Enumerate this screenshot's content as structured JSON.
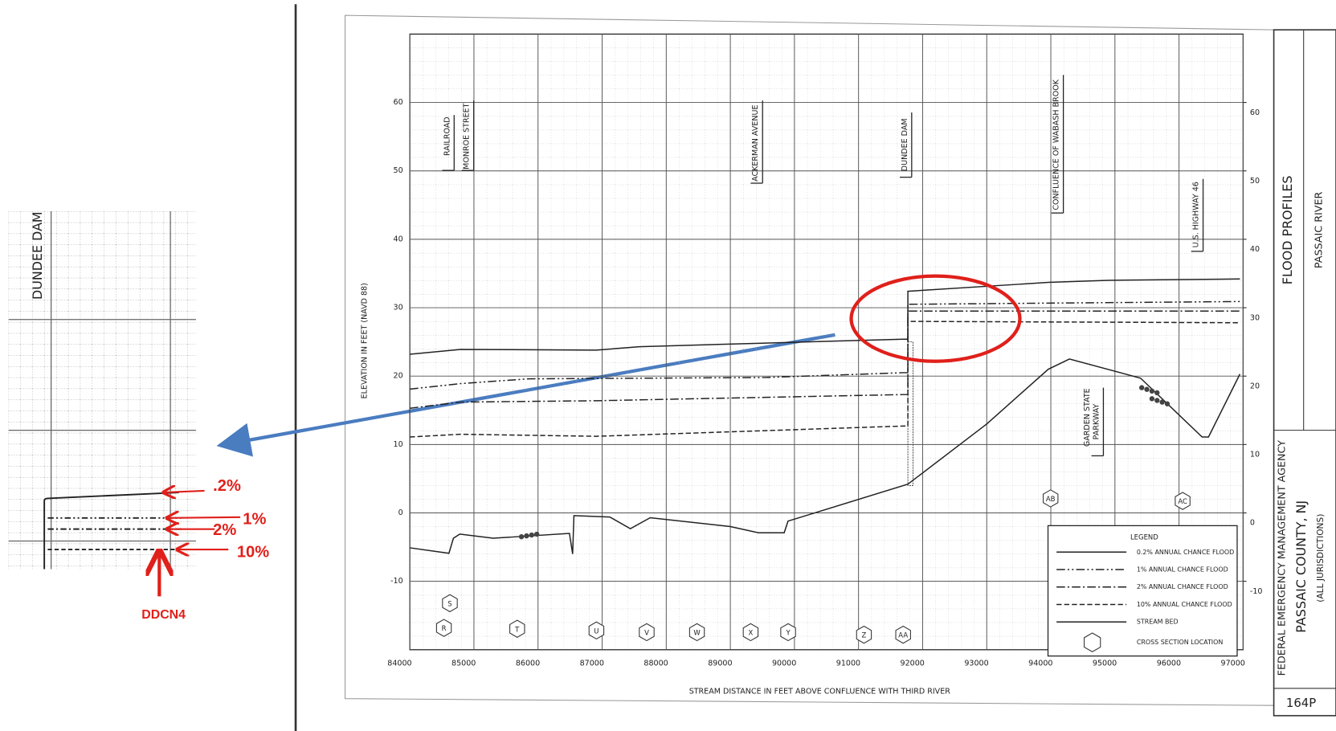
{
  "chart_data": {
    "type": "line",
    "y_label": "ELEVATION IN FEET (NAVD 88)",
    "x_label": "STREAM DISTANCE IN FEET ABOVE CONFLUENCE WITH THIRD RIVER",
    "xlim": [
      84000,
      97000
    ],
    "xticks": [
      84000,
      85000,
      86000,
      87000,
      88000,
      89000,
      90000,
      91000,
      92000,
      93000,
      94000,
      95000,
      96000,
      97000
    ],
    "ylim": [
      -20,
      70
    ],
    "yticks": [
      -10,
      0,
      10,
      20,
      30,
      40,
      50,
      60
    ],
    "grid": true,
    "legend_title": "LEGEND",
    "series": [
      {
        "name": "0.2% ANNUAL CHANCE FLOOD",
        "color": "#222222",
        "x": [
          84000,
          84790,
          86910,
          87580,
          89440,
          91700,
          91770,
          91770,
          93960,
          94890,
          96950
        ],
        "values": [
          23.2,
          23.9,
          23.8,
          24.3,
          24.8,
          25.4,
          25.4,
          32.4,
          33.7,
          34.0,
          34.2
        ]
      },
      {
        "name": "1% ANNUAL CHANCE FLOOD",
        "color": "#222222",
        "dash": "10,3,2,3,2,3",
        "x": [
          84000,
          84790,
          85850,
          89570,
          91700,
          91770,
          91770,
          96950
        ],
        "values": [
          18.1,
          18.9,
          19.6,
          19.8,
          20.5,
          20.5,
          30.5,
          30.9
        ]
      },
      {
        "name": "2% ANNUAL CHANCE FLOOD",
        "color": "#222222",
        "dash": "10,3,2,3",
        "x": [
          84000,
          84790,
          86910,
          91700,
          91770,
          91770,
          96950
        ],
        "values": [
          15.3,
          16.2,
          16.4,
          17.3,
          17.3,
          29.5,
          29.5
        ]
      },
      {
        "name": "10% ANNUAL CHANCE FLOOD",
        "color": "#222222",
        "dash": "6,3",
        "x": [
          84000,
          84790,
          86910,
          91700,
          91770,
          91770,
          96950
        ],
        "values": [
          11.1,
          11.5,
          11.2,
          12.7,
          12.7,
          28.0,
          27.8
        ]
      },
      {
        "name": "STREAM BED",
        "color": "#222222",
        "x": [
          84000,
          84610,
          84680,
          84780,
          85300,
          86490,
          86540,
          86560,
          87120,
          87440,
          87750,
          89000,
          89440,
          89840,
          89900,
          91770,
          93000,
          93960,
          94290,
          95400,
          96360,
          96460,
          96950
        ],
        "values": [
          -5.1,
          -5.9,
          -3.7,
          -3.1,
          -3.7,
          -3.0,
          -6.0,
          -0.4,
          -0.6,
          -2.3,
          -0.7,
          -2.0,
          -2.9,
          -2.9,
          -1.2,
          4.2,
          13.0,
          21.0,
          22.5,
          19.7,
          11.1,
          11.1,
          20.3
        ]
      }
    ],
    "cross_section_legend": "CROSS SECTION LOCATION",
    "cross_sections": [
      "S",
      "R",
      "T",
      "U",
      "V",
      "W",
      "X",
      "Y",
      "Z",
      "AA",
      "AB",
      "AC"
    ],
    "structures": [
      "RAILROAD",
      "MONROE STREET",
      "ACKERMAN AVENUE",
      "DUNDEE DAM",
      "CONFLUENCE OF WABASH BROOK",
      "U.S. HIGHWAY 46",
      "GARDEN STATE",
      "PARKWAY"
    ]
  },
  "title_block": {
    "title": "FLOOD PROFILES",
    "river": "PASSAIC RIVER",
    "agency": "FEDERAL EMERGENCY MANAGEMENT AGENCY",
    "county": "PASSAIC COUNTY, NJ",
    "jurisdictions": "(ALL JURISDICTIONS)",
    "panel": "164P"
  },
  "inset": {
    "title": "DUNDEE DAM",
    "labels": [
      ".2%",
      "1%",
      "2%",
      "10%"
    ],
    "gauge": "DDCN4"
  }
}
